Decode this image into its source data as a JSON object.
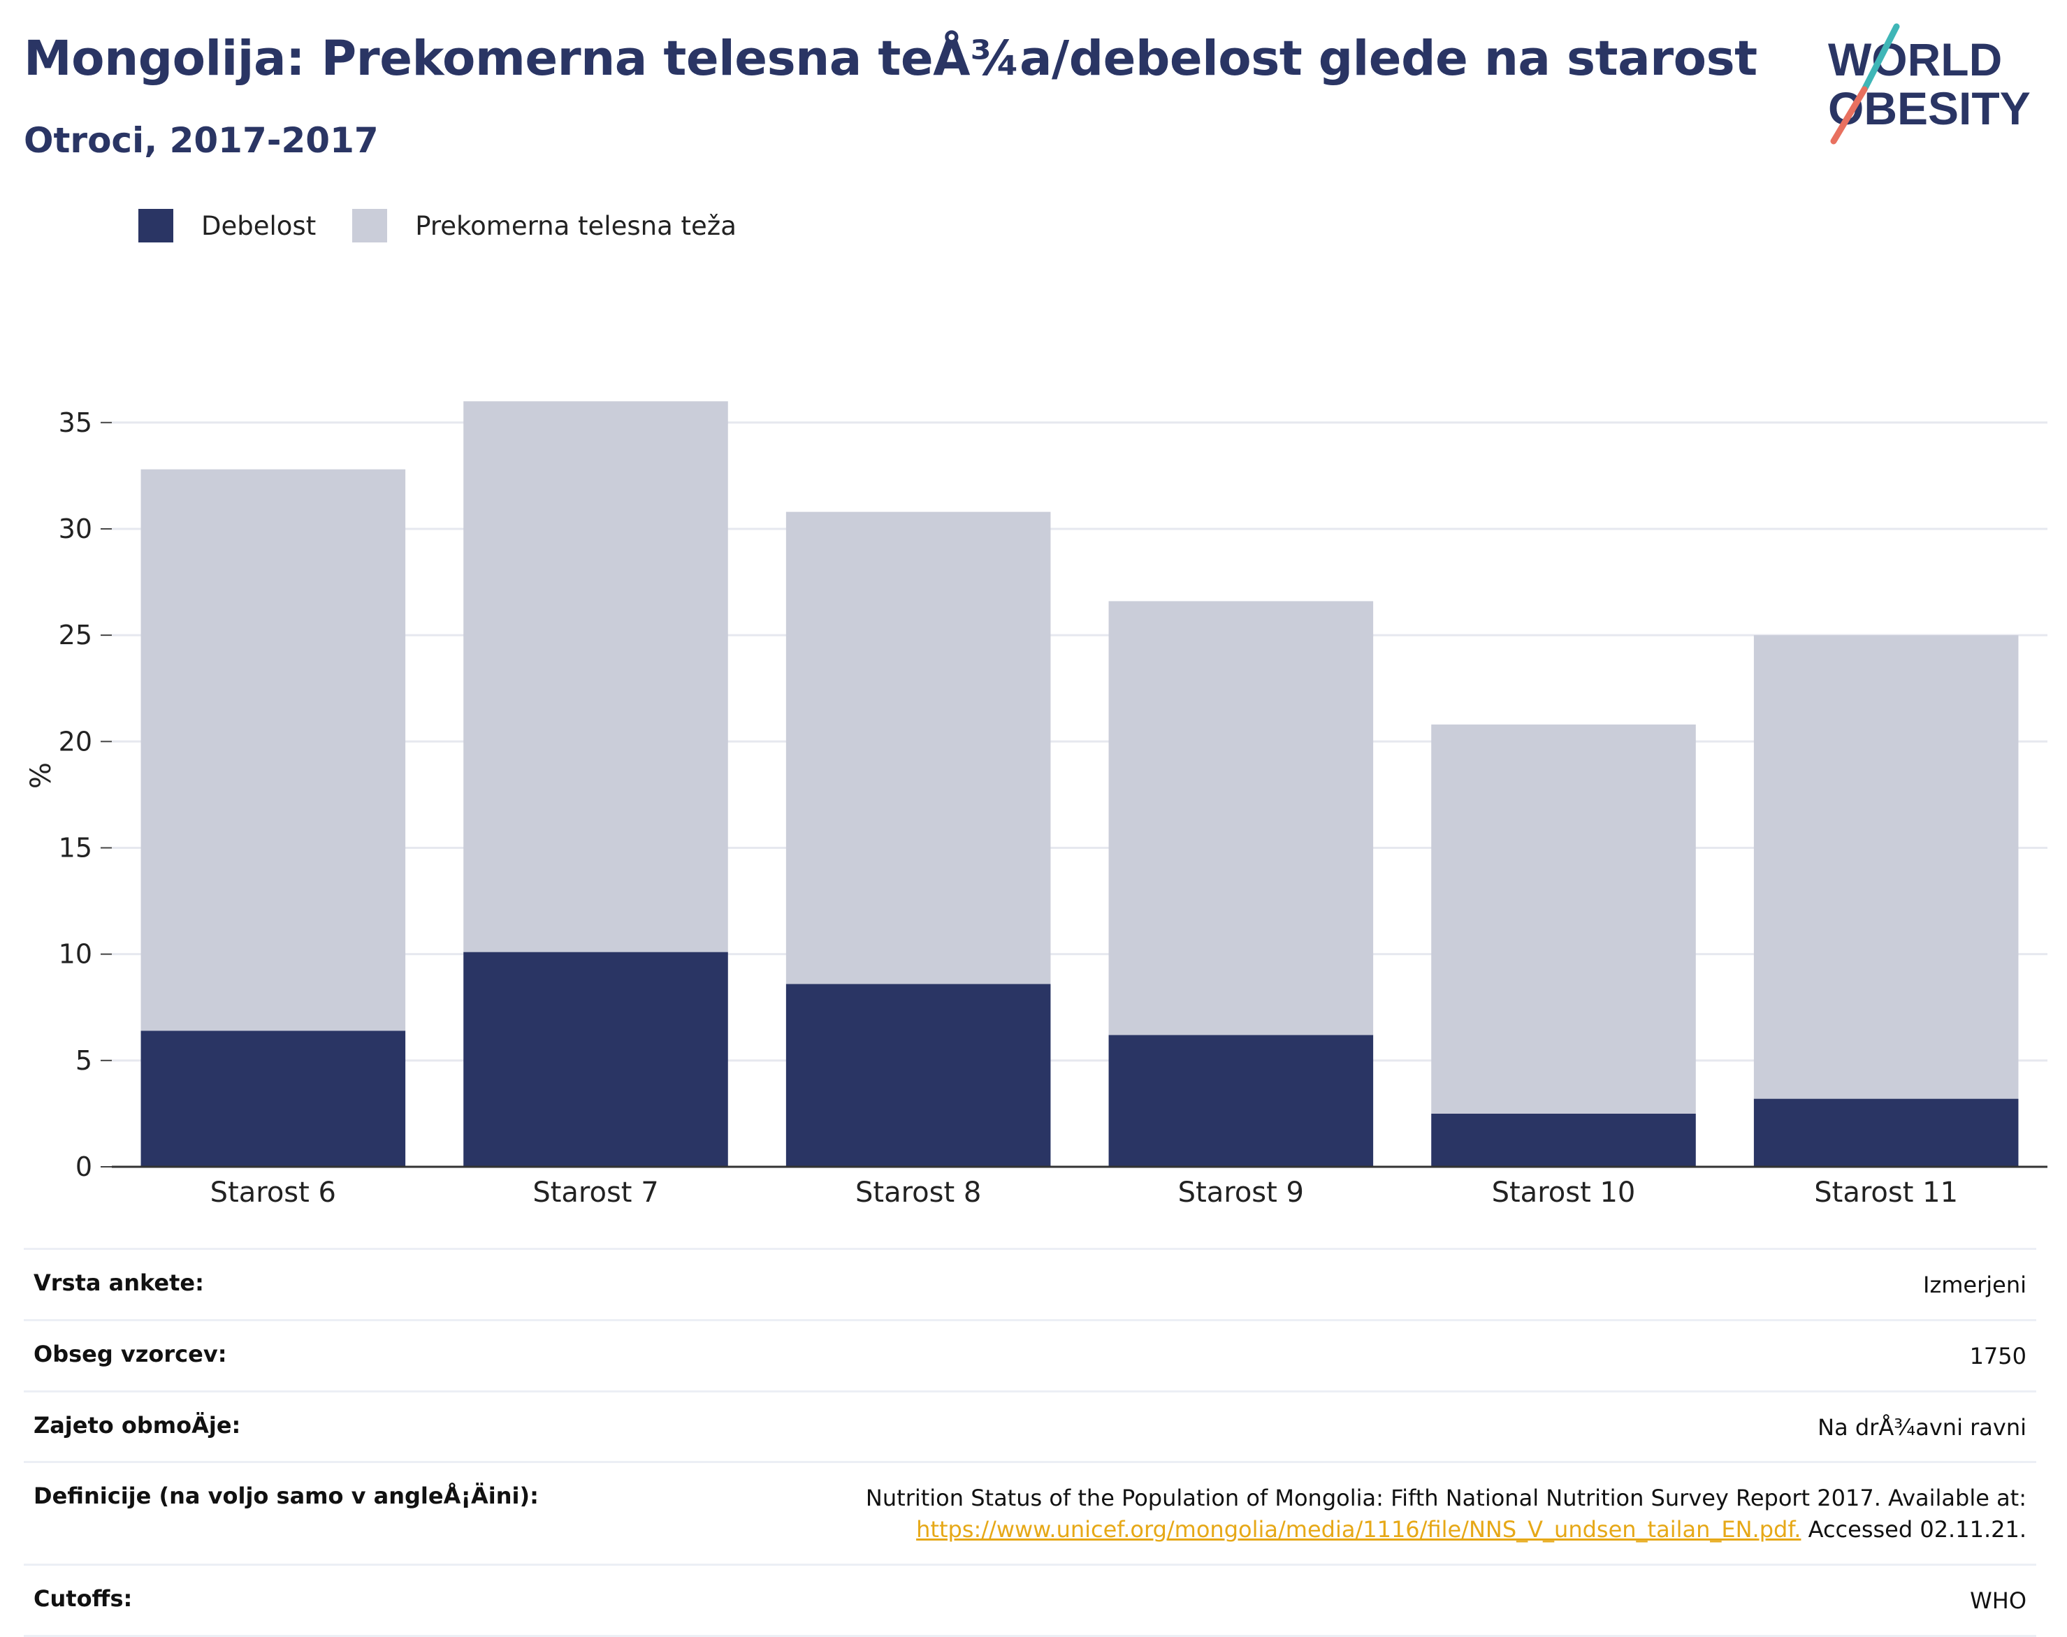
{
  "header": {
    "title": "Mongolija: Prekomerna telesna teÅ¾a/debelost glede na starost",
    "subtitle": "Otroci, 2017-2017"
  },
  "logo": {
    "line1": "WORLD",
    "line2": "OBESITY"
  },
  "legend": [
    {
      "label": "Debelost",
      "color": "#2a3564"
    },
    {
      "label": "Prekomerna telesna teža",
      "color": "#cacdd9"
    }
  ],
  "chart_data": {
    "type": "bar",
    "stacked": true,
    "categories": [
      "Starost 6",
      "Starost 7",
      "Starost 8",
      "Starost 9",
      "Starost 10",
      "Starost 11"
    ],
    "series": [
      {
        "name": "Debelost",
        "values": [
          6.4,
          10.1,
          8.6,
          6.2,
          2.5,
          3.2
        ],
        "color": "#2a3564"
      },
      {
        "name": "Prekomerna telesna teža",
        "values": [
          26.4,
          25.9,
          22.2,
          20.4,
          18.3,
          21.8
        ],
        "color": "#cacdd9"
      }
    ],
    "totals": [
      32.8,
      36.0,
      30.8,
      26.6,
      20.8,
      25.0
    ],
    "ylabel": "%",
    "ylim": [
      0,
      36.8
    ],
    "yticks": [
      0,
      5,
      10,
      15,
      20,
      25,
      30,
      35
    ],
    "grid": true,
    "legend_position": "top-left"
  },
  "info": [
    {
      "key": "Vrsta ankete:",
      "value": "Izmerjeni"
    },
    {
      "key": "Obseg vzorcev:",
      "value": "1750"
    },
    {
      "key": "Zajeto obmoÄje:",
      "value": "Na drÅ¾avni ravni"
    },
    {
      "key": "Definicije (na voljo samo v angleÅ¡Äini):",
      "value_line1": "Nutrition Status of the Population of Mongolia: Fifth National Nutrition Survey Report 2017. Available at:",
      "link": "https://www.unicef.org/mongolia/media/1116/file/NNS_V_undsen_tailan_EN.pdf.",
      "value_suffix": " Accessed 02.11.21."
    },
    {
      "key": "Cutoffs:",
      "value": "WHO"
    }
  ]
}
